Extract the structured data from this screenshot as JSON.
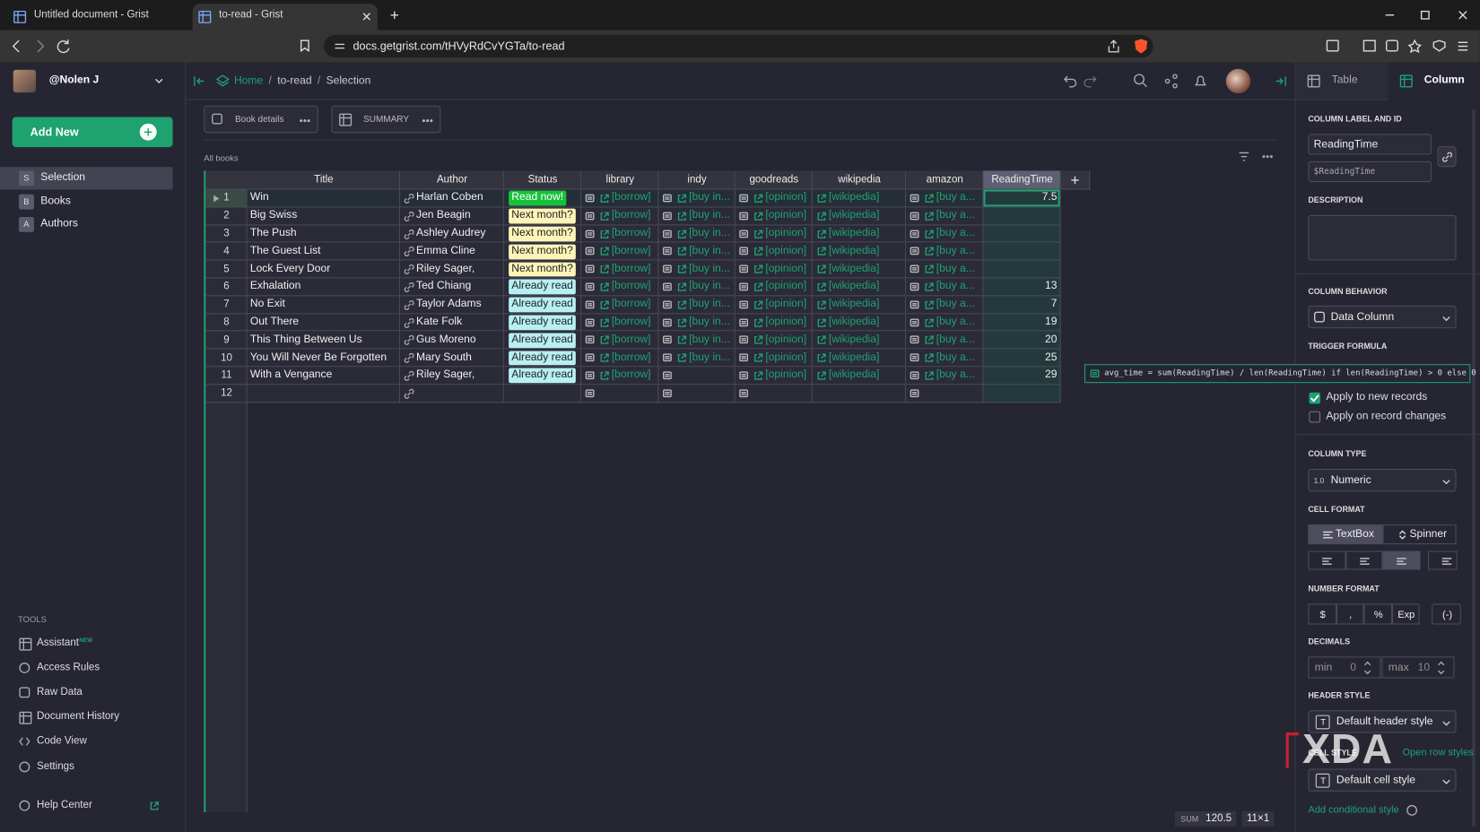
{
  "browser": {
    "tabs": [
      "Untitled document - Grist",
      "to-read - Grist"
    ],
    "url": "docs.getgrist.com/tHVyRdCvYGTa/to-read"
  },
  "sidebar": {
    "user": "@Nolen J",
    "add_new": "Add New",
    "pages": [
      {
        "badge": "S",
        "label": "Selection"
      },
      {
        "badge": "B",
        "label": "Books"
      },
      {
        "badge": "A",
        "label": "Authors"
      }
    ],
    "tools_heading": "TOOLS",
    "tools": [
      "Assistant",
      "Access Rules",
      "Raw Data",
      "Document History",
      "Code View",
      "Settings"
    ],
    "new_badge": "NEW",
    "help": "Help Center"
  },
  "breadcrumb": {
    "items": [
      "Home",
      "to-read",
      "Selection"
    ],
    "separator": "/"
  },
  "widgets": [
    "Book details",
    "SUMMARY"
  ],
  "section_title": "All books",
  "table": {
    "columns": [
      "Title",
      "Author",
      "Status",
      "library",
      "indy",
      "goodreads",
      "wikipedia",
      "amazon",
      "ReadingTime"
    ],
    "rows": [
      {
        "id": 1,
        "cells": [
          "Win",
          "Harlan Coben",
          "Read now!",
          "[borrow]",
          "[buy in...",
          "[opinion]",
          "[wikipedia]",
          "[buy a...",
          7.5
        ],
        "status_color": "#17c23a",
        "status_text_color": "#ffffff"
      },
      {
        "id": 2,
        "cells": [
          "Big Swiss",
          "Jen Beagin",
          "Next month?",
          "[borrow]",
          "[buy in...",
          "[opinion]",
          "[wikipedia]",
          "[buy a...",
          null
        ],
        "status_color": "#fff4b8",
        "status_text_color": "#222222"
      },
      {
        "id": 3,
        "cells": [
          "The Push",
          "Ashley Audrey",
          "Next month?",
          "[borrow]",
          "[buy in...",
          "[opinion]",
          "[wikipedia]",
          "[buy a...",
          null
        ],
        "status_color": "#fff4b8",
        "status_text_color": "#222222"
      },
      {
        "id": 4,
        "cells": [
          "The Guest List",
          "Emma Cline",
          "Next month?",
          "[borrow]",
          "[buy in...",
          "[opinion]",
          "[wikipedia]",
          "[buy a...",
          null
        ],
        "status_color": "#fff4b8",
        "status_text_color": "#222222"
      },
      {
        "id": 5,
        "cells": [
          "Lock Every Door",
          "Riley Sager,",
          "Next month?",
          "[borrow]",
          "[buy in...",
          "[opinion]",
          "[wikipedia]",
          "[buy a...",
          null
        ],
        "status_color": "#fff4b8",
        "status_text_color": "#222222"
      },
      {
        "id": 6,
        "cells": [
          "Exhalation",
          "Ted Chiang",
          "Already read",
          "[borrow]",
          "[buy in...",
          "[opinion]",
          "[wikipedia]",
          "[buy a...",
          13
        ],
        "status_color": "#b7f0f2",
        "status_text_color": "#222222"
      },
      {
        "id": 7,
        "cells": [
          "No Exit",
          "Taylor Adams",
          "Already read",
          "[borrow]",
          "[buy in...",
          "[opinion]",
          "[wikipedia]",
          "[buy a...",
          7
        ],
        "status_color": "#b7f0f2",
        "status_text_color": "#222222"
      },
      {
        "id": 8,
        "cells": [
          "Out There",
          "Kate Folk",
          "Already read",
          "[borrow]",
          "[buy in...",
          "[opinion]",
          "[wikipedia]",
          "[buy a...",
          19
        ],
        "status_color": "#b7f0f2",
        "status_text_color": "#222222"
      },
      {
        "id": 9,
        "cells": [
          "This Thing Between Us",
          "Gus Moreno",
          "Already read",
          "[borrow]",
          "[buy in...",
          "[opinion]",
          "[wikipedia]",
          "[buy a...",
          20
        ],
        "status_color": "#b7f0f2",
        "status_text_color": "#222222"
      },
      {
        "id": 10,
        "cells": [
          "You Will Never Be Forgotten",
          "Mary South",
          "Already read",
          "[borrow]",
          "[buy in...",
          "[opinion]",
          "[wikipedia]",
          "[buy a...",
          25
        ],
        "status_color": "#b7f0f2",
        "status_text_color": "#222222"
      },
      {
        "id": 11,
        "cells": [
          "With a Vengance",
          "Riley Sager,",
          "Already read",
          "[borrow]",
          null,
          "[opinion]",
          "[wikipedia]",
          "[buy a...",
          29
        ],
        "status_color": "#b7f0f2",
        "status_text_color": "#222222"
      },
      {
        "id": 12,
        "cells": [
          null,
          null,
          null,
          null,
          null,
          null,
          null,
          null,
          null
        ],
        "status_color": null,
        "status_text_color": null
      }
    ]
  },
  "footer": {
    "sum_label": "SUM",
    "sum_value": 120.5,
    "selection": "11×1"
  },
  "formula": "avg_time = sum(ReadingTime) / len(ReadingTime) if len(ReadingTime) > 0 else 0",
  "panel": {
    "tabs": [
      "Table",
      "Column"
    ],
    "label_heading": "COLUMN LABEL AND ID",
    "label": "ReadingTime",
    "col_id": "$ReadingTime",
    "description_heading": "DESCRIPTION",
    "behavior_heading": "COLUMN BEHAVIOR",
    "behavior": "Data Column",
    "trigger_heading": "TRIGGER FORMULA",
    "trigger_options": [
      {
        "label": "Apply to new records",
        "checked": true
      },
      {
        "label": "Apply on record changes",
        "checked": false
      }
    ],
    "type_heading": "COLUMN TYPE",
    "type_icon": "1.0",
    "type": "Numeric",
    "cell_format_heading": "CELL FORMAT",
    "cell_formats": [
      "TextBox",
      "Spinner"
    ],
    "number_format_heading": "NUMBER FORMAT",
    "number_formats": [
      "$",
      ",",
      "%",
      "Exp"
    ],
    "negative_format": "(-)",
    "decimals_heading": "DECIMALS",
    "decimals": [
      {
        "label": "min",
        "value": 0
      },
      {
        "label": "max",
        "value": 10
      }
    ],
    "header_style_heading": "HEADER STYLE",
    "header_style": "Default header style",
    "style_icon": "T",
    "cell_style_heading": "CELL STYLE",
    "cell_style": "Default cell style",
    "row_styles_link": "Open row styles",
    "conditional_link": "Add conditional style"
  },
  "watermark": "XDA"
}
